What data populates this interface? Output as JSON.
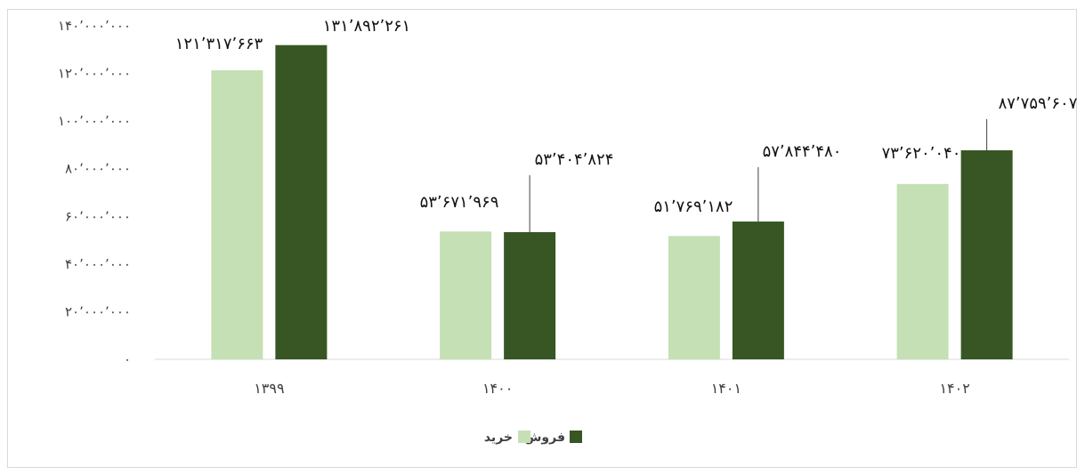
{
  "chart_data": {
    "type": "bar",
    "title": "",
    "xlabel": "",
    "ylabel": "",
    "categories": [
      "۱۳۹۹",
      "۱۴۰۰",
      "۱۴۰۱",
      "۱۴۰۲"
    ],
    "ylim": [
      0,
      140000000
    ],
    "yticks": [
      0,
      20000000,
      40000000,
      60000000,
      80000000,
      100000000,
      120000000,
      140000000
    ],
    "ytick_labels": [
      "۰",
      "۲۰٬۰۰۰٬۰۰۰",
      "۴۰٬۰۰۰٬۰۰۰",
      "۶۰٬۰۰۰٬۰۰۰",
      "۸۰٬۰۰۰٬۰۰۰",
      "۱۰۰٬۰۰۰٬۰۰۰",
      "۱۲۰٬۰۰۰٬۰۰۰",
      "۱۴۰٬۰۰۰٬۰۰۰"
    ],
    "grid": false,
    "legend_position": "bottom",
    "series": [
      {
        "name": "خرید",
        "color": "#c5e0b4",
        "values": [
          121317663,
          53671969,
          51769182,
          73620040
        ],
        "labels": [
          "۱۲۱٬۳۱۷٬۶۶۳",
          "۵۳٬۶۷۱٬۹۶۹",
          "۵۱٬۷۶۹٬۱۸۲",
          "۷۳٬۶۲۰٬۰۴۰"
        ]
      },
      {
        "name": "فروش",
        "color": "#375623",
        "values": [
          131892261,
          53404824,
          57844480,
          87759607
        ],
        "labels": [
          "۱۳۱٬۸۹۲٬۲۶۱",
          "۵۳٬۴۰۴٬۸۲۴",
          "۵۷٬۸۴۴٬۴۸۰",
          "۸۷٬۷۵۹٬۶۰۷"
        ]
      }
    ]
  }
}
